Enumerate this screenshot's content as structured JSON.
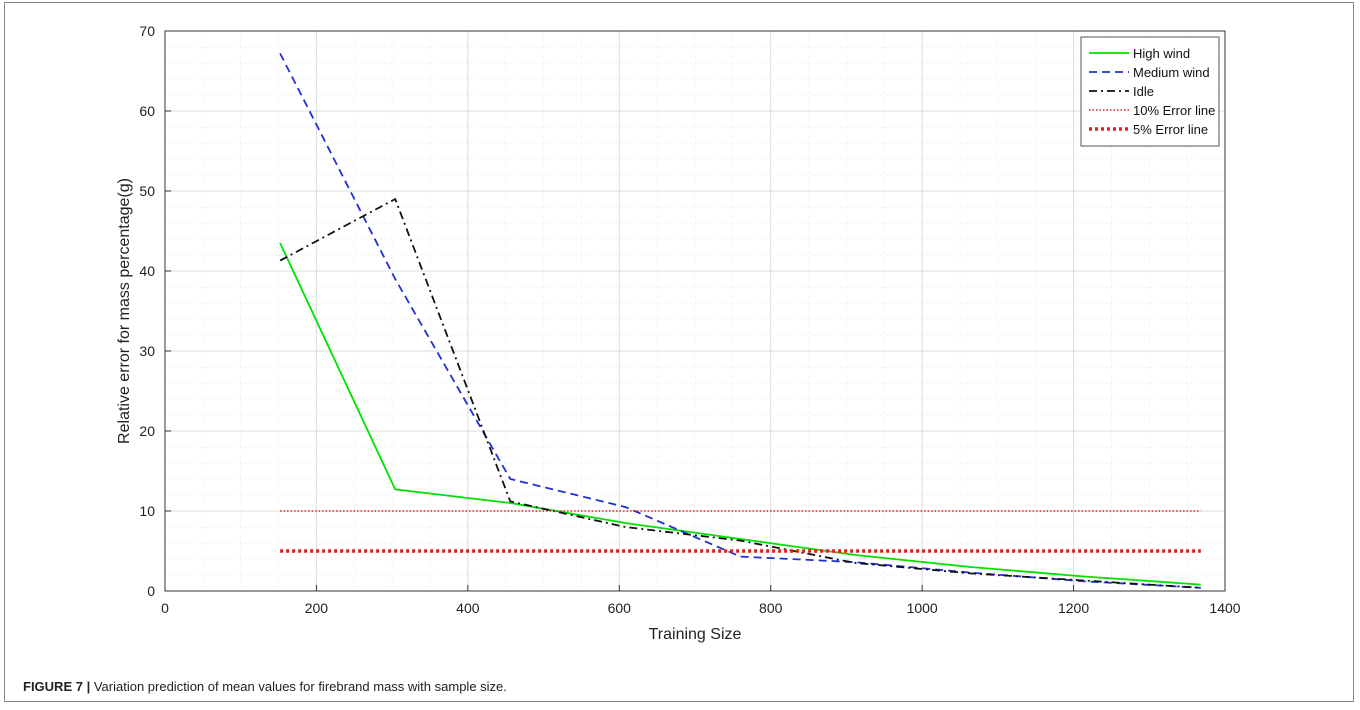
{
  "caption": {
    "label": "FIGURE 7 |",
    "text": "Variation prediction of mean values for firebrand mass with sample size."
  },
  "chart_data": {
    "type": "line",
    "xlabel": "Training Size",
    "ylabel": "Relative error for mass percentage(g)",
    "xlim": [
      0,
      1400
    ],
    "ylim": [
      0,
      70
    ],
    "xticks": [
      0,
      200,
      400,
      600,
      800,
      1000,
      1200,
      1400
    ],
    "yticks": [
      0,
      10,
      20,
      30,
      40,
      50,
      60,
      70
    ],
    "grid": true,
    "legend_position": "top-right",
    "series": [
      {
        "name": "High wind",
        "color": "#00e000",
        "style": "solid",
        "x": [
          152,
          304,
          456,
          608,
          760,
          912,
          1064,
          1216,
          1368
        ],
        "y": [
          43.5,
          12.7,
          11.0,
          8.5,
          6.5,
          4.5,
          3.0,
          1.8,
          0.8
        ]
      },
      {
        "name": "Medium wind",
        "color": "#1f2fd6",
        "style": "dashed",
        "x": [
          152,
          304,
          456,
          608,
          760,
          912,
          1064,
          1216,
          1368
        ],
        "y": [
          67.2,
          39.0,
          14.0,
          10.5,
          4.3,
          3.6,
          2.3,
          1.2,
          0.4
        ]
      },
      {
        "name": "Idle",
        "color": "#111111",
        "style": "dashdot",
        "x": [
          152,
          304,
          456,
          608,
          760,
          912,
          1064,
          1216,
          1368
        ],
        "y": [
          41.3,
          49.0,
          11.2,
          8.0,
          6.3,
          3.5,
          2.2,
          1.3,
          0.4
        ]
      },
      {
        "name": "10% Error line",
        "color": "#e02020",
        "style": "dotted-thin",
        "x": [
          152,
          1368
        ],
        "y": [
          10,
          10
        ]
      },
      {
        "name": "5% Error line",
        "color": "#e02020",
        "style": "dotted-thick",
        "x": [
          152,
          1368
        ],
        "y": [
          5,
          5
        ]
      }
    ]
  }
}
